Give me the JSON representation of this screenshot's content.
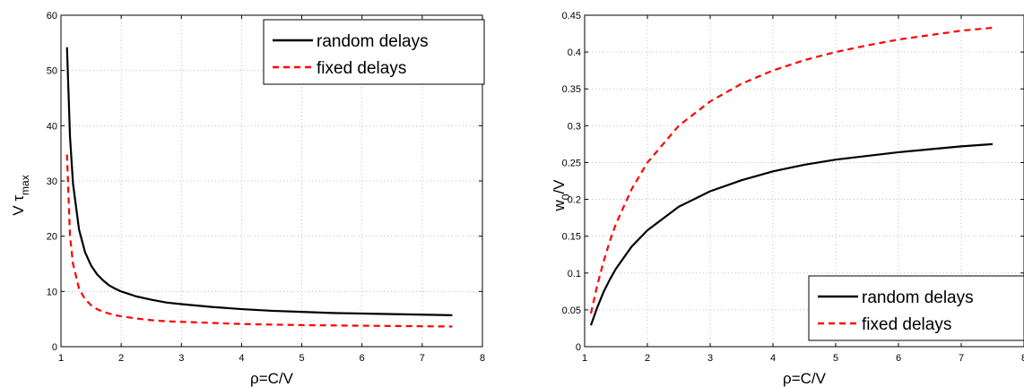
{
  "chart_data": [
    {
      "type": "line",
      "xlabel": "ρ=C/V",
      "ylabel_main": "V τ",
      "ylabel_sub": "max",
      "xlim": [
        1,
        8
      ],
      "ylim": [
        0,
        60
      ],
      "xticks": [
        "1",
        "2",
        "3",
        "4",
        "5",
        "6",
        "7",
        "8"
      ],
      "yticks": [
        "0",
        "10",
        "20",
        "30",
        "40",
        "50",
        "60"
      ],
      "grid": true,
      "legend_position": "top-right",
      "x": [
        1.1,
        1.15,
        1.2,
        1.3,
        1.4,
        1.5,
        1.6,
        1.7,
        1.8,
        1.9,
        2.0,
        2.25,
        2.5,
        2.75,
        3.0,
        3.5,
        4.0,
        4.5,
        5.0,
        5.5,
        6.0,
        6.5,
        7.0,
        7.5
      ],
      "series": [
        {
          "name": "random delays",
          "color": "#000000",
          "dash": "solid",
          "values": [
            54.2,
            38.0,
            29.5,
            21.2,
            17.1,
            14.7,
            13.1,
            12.0,
            11.1,
            10.5,
            10.0,
            9.1,
            8.5,
            8.0,
            7.7,
            7.2,
            6.8,
            6.5,
            6.3,
            6.1,
            6.0,
            5.9,
            5.8,
            5.7
          ]
        },
        {
          "name": "fixed delays",
          "color": "#ff0000",
          "dash": "dashed",
          "values": [
            34.8,
            20.0,
            15.0,
            10.5,
            8.6,
            7.5,
            6.8,
            6.3,
            6.0,
            5.7,
            5.5,
            5.1,
            4.8,
            4.6,
            4.5,
            4.3,
            4.1,
            4.0,
            3.9,
            3.85,
            3.8,
            3.75,
            3.7,
            3.65
          ]
        }
      ]
    },
    {
      "type": "line",
      "xlabel": "ρ=C/V",
      "ylabel_main": "w",
      "ylabel_sub": "0",
      "ylabel_tail": "/V",
      "xlim": [
        1,
        8
      ],
      "ylim": [
        0,
        0.45
      ],
      "xticks": [
        "1",
        "2",
        "3",
        "4",
        "5",
        "6",
        "7",
        "8"
      ],
      "yticks": [
        "0",
        "0.05",
        "0.1",
        "0.15",
        "0.2",
        "0.25",
        "0.3",
        "0.35",
        "0.4",
        "0.45"
      ],
      "grid": true,
      "legend_position": "bottom-right",
      "x": [
        1.1,
        1.2,
        1.3,
        1.4,
        1.5,
        1.75,
        2.0,
        2.5,
        3.0,
        3.5,
        4.0,
        4.5,
        5.0,
        5.5,
        6.0,
        6.5,
        7.0,
        7.5
      ],
      "series": [
        {
          "name": "random delays",
          "color": "#000000",
          "dash": "solid",
          "values": [
            0.029,
            0.053,
            0.074,
            0.091,
            0.106,
            0.136,
            0.158,
            0.19,
            0.211,
            0.226,
            0.238,
            0.247,
            0.254,
            0.259,
            0.264,
            0.268,
            0.272,
            0.275
          ]
        },
        {
          "name": "fixed delays",
          "color": "#ff0000",
          "dash": "dashed",
          "values": [
            0.045,
            0.083,
            0.115,
            0.143,
            0.167,
            0.214,
            0.25,
            0.3,
            0.333,
            0.357,
            0.375,
            0.389,
            0.4,
            0.409,
            0.417,
            0.423,
            0.429,
            0.433
          ]
        }
      ]
    }
  ]
}
